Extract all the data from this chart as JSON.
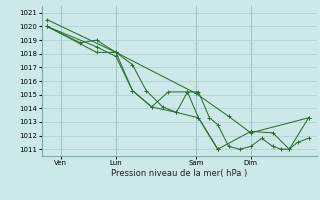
{
  "background_color": "#cce8e8",
  "grid_color": "#aacfcf",
  "line_color": "#2d6e2d",
  "marker_color": "#2d6e2d",
  "xlabel": "Pression niveau de la mer( hPa )",
  "ylim": [
    1010.5,
    1021.5
  ],
  "yticks": [
    1011,
    1012,
    1013,
    1014,
    1015,
    1016,
    1017,
    1018,
    1019,
    1020,
    1021
  ],
  "xtick_labels": [
    "Ven",
    "Lun",
    "Sam",
    "Dim"
  ],
  "vline_positions": [
    0.07,
    0.27,
    0.56,
    0.76
  ],
  "series": [
    {
      "x": [
        0.02,
        0.27,
        0.56,
        0.68,
        0.76,
        0.97
      ],
      "y": [
        1020.5,
        1018.1,
        1015.1,
        1013.4,
        1012.2,
        1013.3
      ]
    },
    {
      "x": [
        0.02,
        0.14,
        0.2,
        0.27,
        0.33,
        0.38,
        0.44,
        0.49,
        0.53,
        0.57,
        0.61,
        0.64,
        0.68,
        0.72,
        0.76,
        0.8,
        0.84,
        0.87,
        0.9,
        0.93,
        0.97
      ],
      "y": [
        1020.0,
        1018.8,
        1019.0,
        1018.1,
        1017.2,
        1015.3,
        1014.1,
        1013.7,
        1015.2,
        1015.2,
        1013.3,
        1012.8,
        1011.2,
        1011.0,
        1011.2,
        1011.8,
        1011.2,
        1011.0,
        1011.0,
        1011.5,
        1011.8
      ]
    },
    {
      "x": [
        0.02,
        0.2,
        0.27,
        0.33,
        0.4,
        0.49,
        0.57,
        0.64,
        0.76,
        0.84,
        0.9,
        0.97
      ],
      "y": [
        1020.0,
        1018.1,
        1018.1,
        1015.3,
        1014.1,
        1013.7,
        1013.3,
        1011.0,
        1012.3,
        1012.2,
        1011.0,
        1013.3
      ]
    },
    {
      "x": [
        0.02,
        0.2,
        0.27,
        0.33,
        0.4,
        0.46,
        0.53,
        0.57,
        0.64
      ],
      "y": [
        1020.0,
        1018.5,
        1017.8,
        1015.3,
        1014.1,
        1015.2,
        1015.2,
        1013.3,
        1011.0
      ]
    }
  ]
}
